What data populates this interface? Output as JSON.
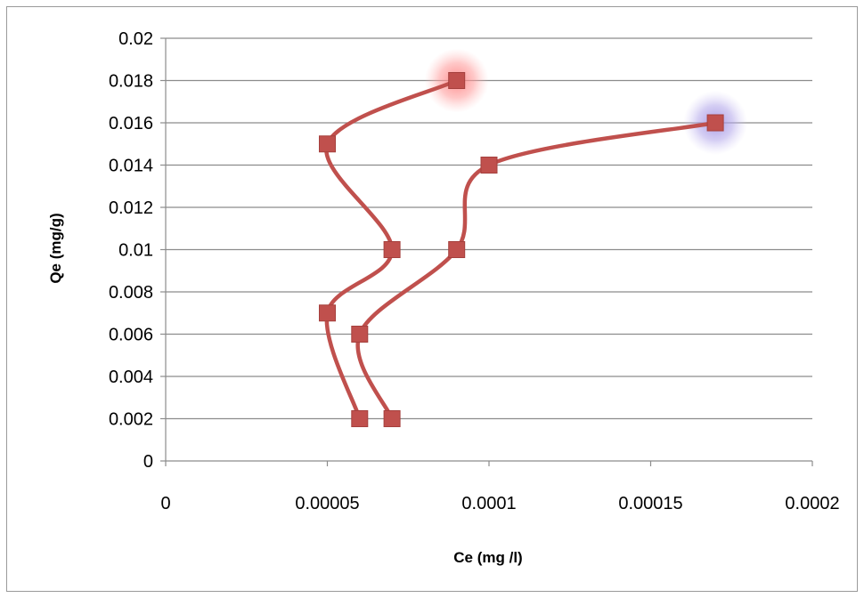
{
  "chart_data": {
    "type": "scatter",
    "title": "",
    "xlabel": "Ce (mg /l)",
    "ylabel": "Qe (mg/g)",
    "xlim": [
      0,
      0.0002
    ],
    "ylim": [
      0,
      0.02
    ],
    "x_ticks": [
      "0",
      "0.00005",
      "0.0001",
      "0.00015",
      "0.0002"
    ],
    "y_ticks": [
      "0",
      "0.002",
      "0.004",
      "0.006",
      "0.008",
      "0.01",
      "0.012",
      "0.014",
      "0.016",
      "0.018",
      "0.02"
    ],
    "grid": "horizontal",
    "legend": "none",
    "series": [
      {
        "color": "#c0504d",
        "highlight_color": "#ff8080",
        "points": [
          {
            "x": 6e-05,
            "y": 0.002
          },
          {
            "x": 5e-05,
            "y": 0.007
          },
          {
            "x": 7e-05,
            "y": 0.01
          },
          {
            "x": 5e-05,
            "y": 0.015
          },
          {
            "x": 9e-05,
            "y": 0.018
          }
        ]
      },
      {
        "color": "#c0504d",
        "highlight_color": "#9f8fe0",
        "points": [
          {
            "x": 7e-05,
            "y": 0.002
          },
          {
            "x": 6e-05,
            "y": 0.006
          },
          {
            "x": 9e-05,
            "y": 0.01
          },
          {
            "x": 0.0001,
            "y": 0.014
          },
          {
            "x": 0.00017,
            "y": 0.016
          }
        ]
      }
    ]
  }
}
